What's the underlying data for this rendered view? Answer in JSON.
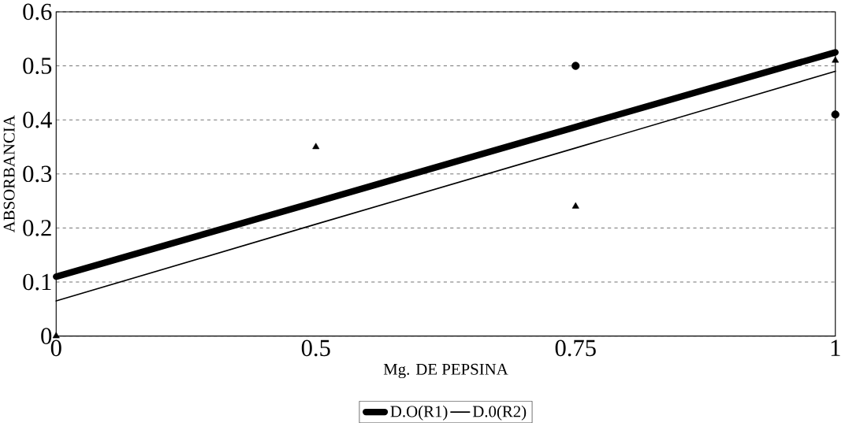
{
  "chart_data": {
    "type": "line",
    "xlabel": "Mg. DE PEPSINA",
    "ylabel": "ABSORBANCIA",
    "categories": [
      "0",
      "0.5",
      "0.75",
      "1"
    ],
    "ylim": [
      0,
      0.6
    ],
    "yticks": [
      0,
      0.1,
      0.2,
      0.3,
      0.4,
      0.5,
      0.6
    ],
    "grid": "y",
    "legend": "bottom",
    "series": [
      {
        "name": "D.O(R1)",
        "color": "#000000",
        "marker": "none",
        "values": [
          0.11,
          0.248,
          0.387,
          0.525
        ]
      },
      {
        "name": "D.0(R2)",
        "color": "#000000",
        "marker": "none",
        "values": [
          0.065,
          0.207,
          0.348,
          0.49
        ]
      },
      {
        "type": "scatter",
        "color": "#000000",
        "marker": "circle",
        "values": [
          null,
          null,
          0.5,
          0.41
        ]
      },
      {
        "type": "scatter",
        "color": "#000000",
        "marker": "triangle",
        "values": [
          0,
          0.35,
          0.24,
          0.51
        ]
      }
    ]
  }
}
